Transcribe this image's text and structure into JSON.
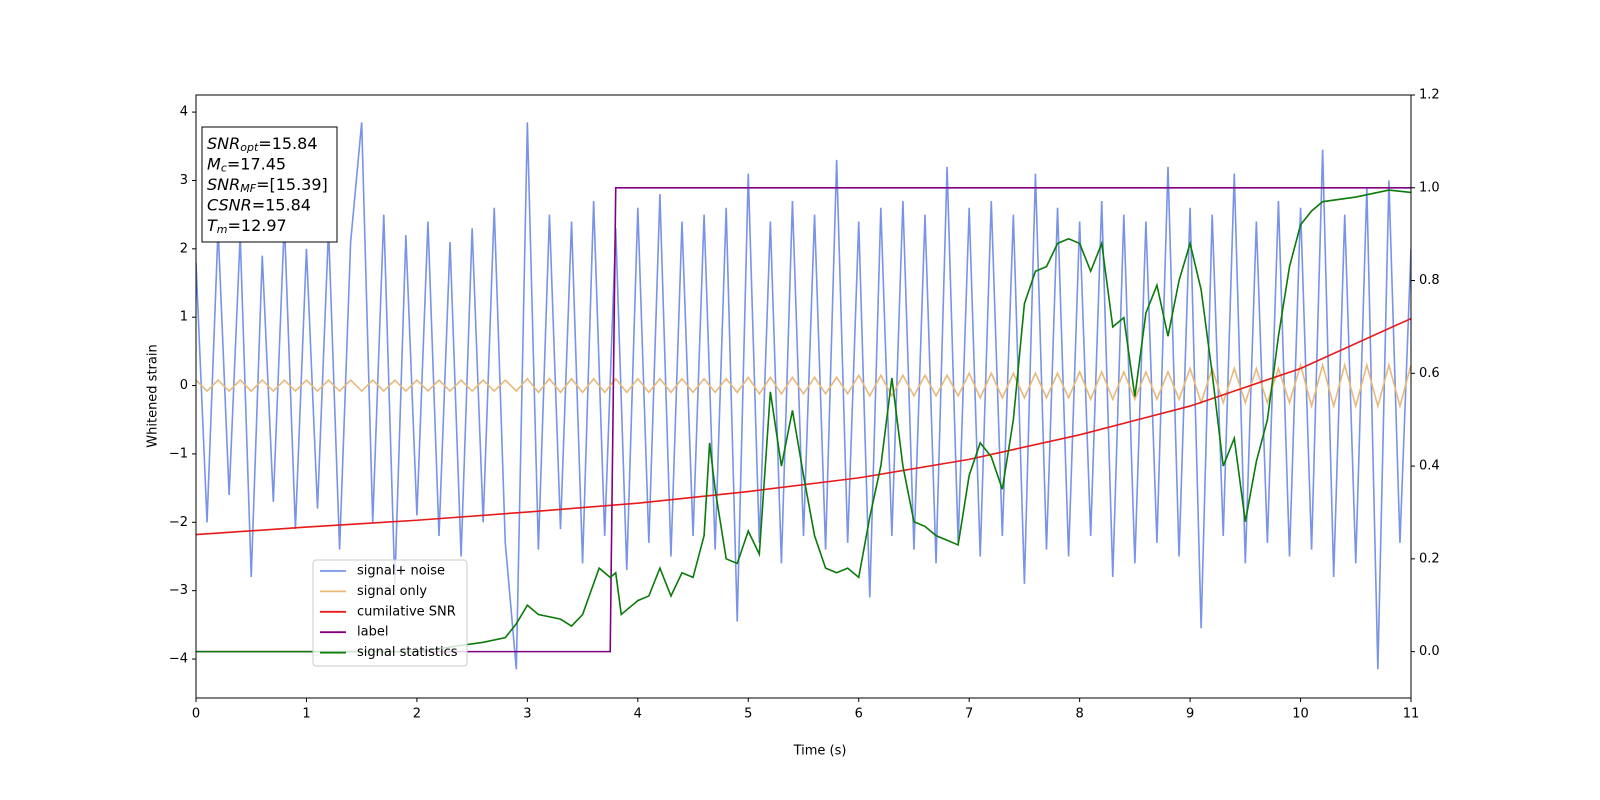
{
  "chart_data": {
    "type": "line",
    "xlabel": "Time (s)",
    "ylabel": "Whitened strain",
    "xlim": [
      0,
      11
    ],
    "xticks": [
      0,
      1,
      2,
      3,
      4,
      5,
      6,
      7,
      8,
      9,
      10,
      11
    ],
    "ylim": [
      -4.57,
      4.25
    ],
    "yticks": [
      {
        "value": -4,
        "label": "−4"
      },
      {
        "value": -3,
        "label": "−3"
      },
      {
        "value": -2,
        "label": "−2"
      },
      {
        "value": -1,
        "label": "−1"
      },
      0,
      1,
      2,
      3,
      4
    ],
    "y2lim": [
      -0.1,
      1.2
    ],
    "y2ticks": [
      {
        "value": 0,
        "label": "0.0"
      },
      {
        "value": 0.2,
        "label": "0.2"
      },
      {
        "value": 0.4,
        "label": "0.4"
      },
      {
        "value": 0.6,
        "label": "0.6"
      },
      {
        "value": 0.8,
        "label": "0.8"
      },
      {
        "value": 1,
        "label": "1.0"
      },
      {
        "value": 1.2,
        "label": "1.2"
      }
    ],
    "annotation": [
      {
        "symbol": "SNR",
        "sub": "opt",
        "text": "=15.84"
      },
      {
        "symbol": "M",
        "sub": "c",
        "text": "=17.45"
      },
      {
        "symbol": "SNR",
        "sub": "MF",
        "text": "=[15.39]"
      },
      {
        "symbol": "CSNR",
        "text": "=15.84"
      },
      {
        "symbol": "T",
        "sub": "m",
        "text": "=12.97"
      }
    ],
    "series": [
      {
        "name": "signal+ noise",
        "color": "#7893e7",
        "x": [
          0,
          0.1,
          0.2,
          0.3,
          0.4,
          0.5,
          0.6,
          0.7,
          0.8,
          0.9,
          1,
          1.1,
          1.2,
          1.3,
          1.4,
          1.5,
          1.6,
          1.7,
          1.8,
          1.9,
          2,
          2.1,
          2.2,
          2.3,
          2.4,
          2.5,
          2.6,
          2.7,
          2.8,
          2.9,
          3,
          3.1,
          3.2,
          3.3,
          3.4,
          3.5,
          3.6,
          3.7,
          3.8,
          3.9,
          4,
          4.1,
          4.2,
          4.3,
          4.4,
          4.5,
          4.6,
          4.7,
          4.8,
          4.9,
          5,
          5.1,
          5.2,
          5.3,
          5.4,
          5.5,
          5.6,
          5.7,
          5.8,
          5.9,
          6,
          6.1,
          6.2,
          6.3,
          6.4,
          6.5,
          6.6,
          6.7,
          6.8,
          6.9,
          7,
          7.1,
          7.2,
          7.3,
          7.4,
          7.5,
          7.6,
          7.7,
          7.8,
          7.9,
          8,
          8.1,
          8.2,
          8.3,
          8.4,
          8.5,
          8.6,
          8.7,
          8.8,
          8.9,
          9,
          9.1,
          9.2,
          9.3,
          9.4,
          9.5,
          9.6,
          9.7,
          9.8,
          9.9,
          10,
          10.1,
          10.2,
          10.3,
          10.4,
          10.5,
          10.6,
          10.7,
          10.8,
          10.9,
          11
        ],
        "values": [
          1.8,
          -2.0,
          2.3,
          -1.6,
          2.2,
          -2.8,
          1.9,
          -1.7,
          2.4,
          -2.1,
          2.0,
          -1.8,
          2.3,
          -2.4,
          2.1,
          3.85,
          -2.0,
          2.5,
          -2.9,
          2.2,
          -1.9,
          2.4,
          -2.2,
          2.1,
          -2.5,
          2.3,
          -2.0,
          2.6,
          -2.3,
          -4.15,
          3.85,
          -2.4,
          2.5,
          -2.1,
          2.4,
          -2.6,
          2.7,
          -2.2,
          2.3,
          -2.7,
          2.6,
          -2.3,
          2.8,
          -2.5,
          2.4,
          -2.2,
          2.5,
          -2.4,
          2.6,
          -3.45,
          3.1,
          -2.3,
          2.4,
          -2.6,
          2.7,
          -2.2,
          2.5,
          -2.4,
          3.3,
          -2.3,
          2.4,
          -3.1,
          2.6,
          -2.2,
          2.7,
          -2.4,
          2.5,
          -2.6,
          3.2,
          -2.3,
          2.6,
          -2.5,
          2.7,
          -2.2,
          2.5,
          -2.9,
          3.1,
          -2.4,
          2.6,
          -2.5,
          2.4,
          -2.2,
          2.7,
          -2.8,
          2.5,
          -2.6,
          2.4,
          -2.3,
          3.2,
          -2.5,
          2.6,
          -3.55,
          2.5,
          -2.2,
          3.1,
          -2.6,
          2.4,
          -2.3,
          2.7,
          -2.5,
          2.6,
          -2.4,
          3.45,
          -2.8,
          2.5,
          -2.6,
          2.9,
          -4.15,
          3.0,
          -2.3,
          2.0
        ]
      },
      {
        "name": "signal only",
        "color": "#e9b97a",
        "x": [
          0,
          0.1,
          0.2,
          0.3,
          0.4,
          0.5,
          0.6,
          0.7,
          0.8,
          0.9,
          1,
          1.1,
          1.2,
          1.3,
          1.4,
          1.5,
          1.6,
          1.7,
          1.8,
          1.9,
          2,
          2.1,
          2.2,
          2.3,
          2.4,
          2.5,
          2.6,
          2.7,
          2.8,
          2.9,
          3,
          3.1,
          3.2,
          3.3,
          3.4,
          3.5,
          3.6,
          3.7,
          3.8,
          3.9,
          4,
          4.1,
          4.2,
          4.3,
          4.4,
          4.5,
          4.6,
          4.7,
          4.8,
          4.9,
          5,
          5.1,
          5.2,
          5.3,
          5.4,
          5.5,
          5.6,
          5.7,
          5.8,
          5.9,
          6,
          6.1,
          6.2,
          6.3,
          6.4,
          6.5,
          6.6,
          6.7,
          6.8,
          6.9,
          7,
          7.1,
          7.2,
          7.3,
          7.4,
          7.5,
          7.6,
          7.7,
          7.8,
          7.9,
          8,
          8.1,
          8.2,
          8.3,
          8.4,
          8.5,
          8.6,
          8.7,
          8.8,
          8.9,
          9,
          9.1,
          9.2,
          9.3,
          9.4,
          9.5,
          9.6,
          9.7,
          9.8,
          9.9,
          10,
          10.1,
          10.2,
          10.3,
          10.4,
          10.5,
          10.6,
          10.7,
          10.8,
          10.9,
          11
        ],
        "values": [
          0.08,
          -0.08,
          0.08,
          -0.08,
          0.08,
          -0.08,
          0.08,
          -0.08,
          0.08,
          -0.08,
          0.08,
          -0.08,
          0.08,
          -0.08,
          0.08,
          -0.08,
          0.08,
          -0.08,
          0.08,
          -0.08,
          0.08,
          -0.08,
          0.08,
          -0.08,
          0.08,
          -0.08,
          0.08,
          -0.08,
          0.08,
          -0.08,
          0.1,
          -0.1,
          0.1,
          -0.1,
          0.1,
          -0.1,
          0.1,
          -0.1,
          0.1,
          -0.1,
          0.1,
          -0.1,
          0.1,
          -0.1,
          0.1,
          -0.1,
          0.1,
          -0.1,
          0.1,
          -0.1,
          0.12,
          -0.12,
          0.12,
          -0.12,
          0.12,
          -0.12,
          0.12,
          -0.12,
          0.12,
          -0.12,
          0.15,
          -0.15,
          0.15,
          -0.15,
          0.15,
          -0.15,
          0.15,
          -0.15,
          0.15,
          -0.15,
          0.18,
          -0.18,
          0.18,
          -0.18,
          0.18,
          -0.18,
          0.18,
          -0.18,
          0.18,
          -0.18,
          0.2,
          -0.2,
          0.2,
          -0.2,
          0.2,
          -0.2,
          0.2,
          -0.2,
          0.2,
          -0.2,
          0.25,
          -0.25,
          0.25,
          -0.25,
          0.25,
          -0.25,
          0.25,
          -0.25,
          0.25,
          -0.25,
          0.3,
          -0.3,
          0.3,
          -0.3,
          0.3,
          -0.3,
          0.3,
          -0.3,
          0.3,
          -0.3,
          0.3
        ]
      },
      {
        "name": "cumilative SNR",
        "color": "#e8191b",
        "x": [
          0,
          1,
          2,
          3,
          4,
          5,
          6,
          7,
          8,
          9,
          10,
          11
        ],
        "values": [
          -2.18,
          -2.07,
          -1.97,
          -1.85,
          -1.72,
          -1.55,
          -1.35,
          -1.08,
          -0.72,
          -0.3,
          0.25,
          0.98
        ]
      },
      {
        "name": "label",
        "color": "#800080",
        "axis": "y2",
        "x": [
          0,
          3.75,
          3.8,
          11
        ],
        "values": [
          0,
          0,
          1,
          1
        ]
      },
      {
        "name": "signal statistics",
        "color": "#0a7a0a",
        "axis": "y2",
        "x": [
          0,
          0.5,
          1,
          1.5,
          2,
          2.3,
          2.6,
          2.8,
          2.9,
          3.0,
          3.1,
          3.3,
          3.4,
          3.5,
          3.65,
          3.75,
          3.8,
          3.85,
          4.0,
          4.1,
          4.2,
          4.3,
          4.4,
          4.5,
          4.6,
          4.65,
          4.7,
          4.8,
          4.9,
          5.0,
          5.1,
          5.2,
          5.3,
          5.4,
          5.5,
          5.6,
          5.7,
          5.8,
          5.9,
          6.0,
          6.1,
          6.2,
          6.3,
          6.4,
          6.5,
          6.6,
          6.7,
          6.8,
          6.9,
          7.0,
          7.1,
          7.2,
          7.3,
          7.4,
          7.5,
          7.6,
          7.7,
          7.8,
          7.9,
          8.0,
          8.1,
          8.2,
          8.3,
          8.4,
          8.5,
          8.6,
          8.7,
          8.8,
          8.9,
          9.0,
          9.1,
          9.2,
          9.3,
          9.4,
          9.5,
          9.6,
          9.7,
          9.8,
          9.9,
          10.0,
          10.1,
          10.2,
          10.5,
          10.8,
          11
        ],
        "values": [
          0,
          0,
          0,
          0,
          0,
          0.01,
          0.02,
          0.03,
          0.06,
          0.1,
          0.08,
          0.07,
          0.055,
          0.08,
          0.18,
          0.16,
          0.17,
          0.08,
          0.11,
          0.12,
          0.18,
          0.12,
          0.17,
          0.16,
          0.25,
          0.45,
          0.35,
          0.2,
          0.19,
          0.26,
          0.21,
          0.56,
          0.4,
          0.52,
          0.38,
          0.25,
          0.18,
          0.17,
          0.18,
          0.16,
          0.29,
          0.4,
          0.59,
          0.4,
          0.28,
          0.27,
          0.25,
          0.24,
          0.23,
          0.38,
          0.45,
          0.42,
          0.35,
          0.5,
          0.75,
          0.82,
          0.83,
          0.88,
          0.89,
          0.88,
          0.82,
          0.88,
          0.7,
          0.72,
          0.55,
          0.73,
          0.79,
          0.68,
          0.8,
          0.88,
          0.78,
          0.6,
          0.4,
          0.46,
          0.28,
          0.41,
          0.5,
          0.68,
          0.83,
          0.92,
          0.95,
          0.97,
          0.98,
          0.995,
          0.99
        ]
      }
    ]
  }
}
